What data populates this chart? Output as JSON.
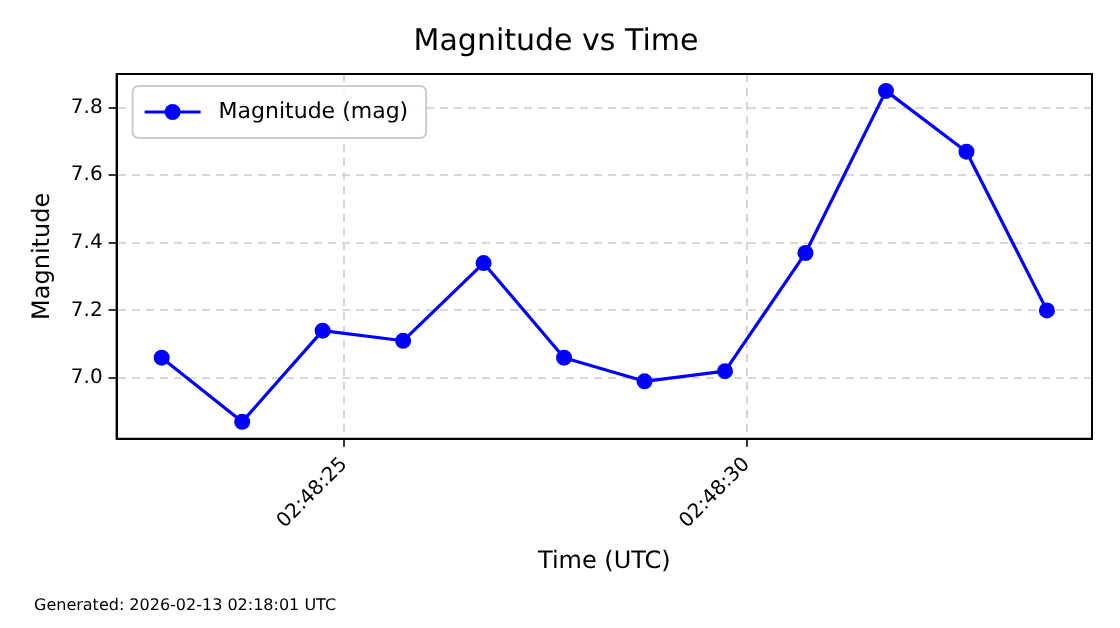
{
  "chart_data": {
    "type": "line",
    "title": "Magnitude vs Time",
    "xlabel": "Time (UTC)",
    "ylabel": "Magnitude",
    "x": [
      2.8063139,
      2.8065917,
      2.8068694,
      2.8071472,
      2.807425,
      2.8077028,
      2.8079806,
      2.8082583,
      2.8085361,
      2.8088139,
      2.8090917,
      2.8093694
    ],
    "series": [
      {
        "name": "Magnitude (mag)",
        "color": "#0000ff",
        "values": [
          7.06,
          6.87,
          7.14,
          7.11,
          7.34,
          7.06,
          6.99,
          7.02,
          7.37,
          7.85,
          7.67,
          7.2
        ]
      }
    ],
    "xlim": [
      2.8061583,
      2.809525
    ],
    "xticks": [
      {
        "value": 2.8069444,
        "label": "02:48:25"
      },
      {
        "value": 2.8083333,
        "label": "02:48:30"
      }
    ],
    "ylim": [
      6.82,
      7.9
    ],
    "yticks": [
      {
        "value": 7,
        "label": "7.0"
      },
      7.2,
      7.4,
      7.6,
      7.8
    ],
    "grid": true,
    "legend": "top left",
    "marker": "circle",
    "line_style": "solid",
    "annotations": [
      "Generated: 2026-02-13 02:18:01 UTC"
    ]
  }
}
